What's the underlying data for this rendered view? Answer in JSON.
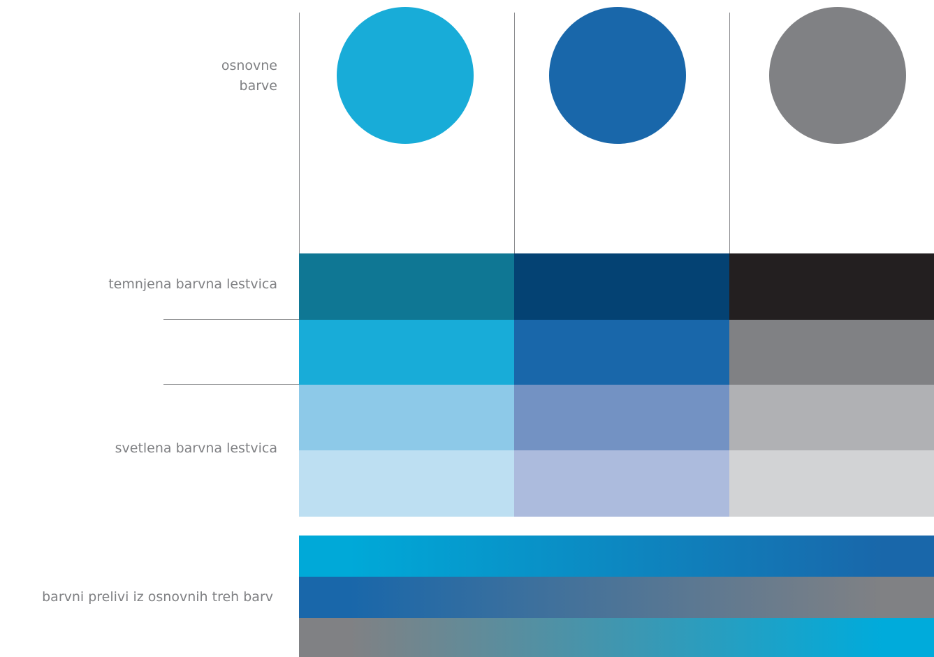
{
  "labels": {
    "basic_line1": "osnovne",
    "basic_line2": "barve",
    "dark_scale": "temnjena barvna lestvica",
    "light_scale": "svetlena barvna lestvica",
    "gradients": "barvni prelivi iz osnovnih treh barv"
  },
  "colors": {
    "basic": [
      "#18acd8",
      "#1967aa",
      "#808184"
    ],
    "dark": [
      "#0f7794",
      "#044273",
      "#231f20"
    ],
    "light_1": [
      "#8dc9e8",
      "#7392c3",
      "#b0b1b4"
    ],
    "light_2": [
      "#bddff2",
      "#acbbdd",
      "#d2d3d5"
    ],
    "line": "#8b8c8f",
    "text": "#7f8083"
  },
  "gradients": [
    [
      "#00a9d8",
      "#1967aa"
    ],
    [
      "#1967aa",
      "#808184"
    ],
    [
      "#808184",
      "#00abdb"
    ]
  ]
}
